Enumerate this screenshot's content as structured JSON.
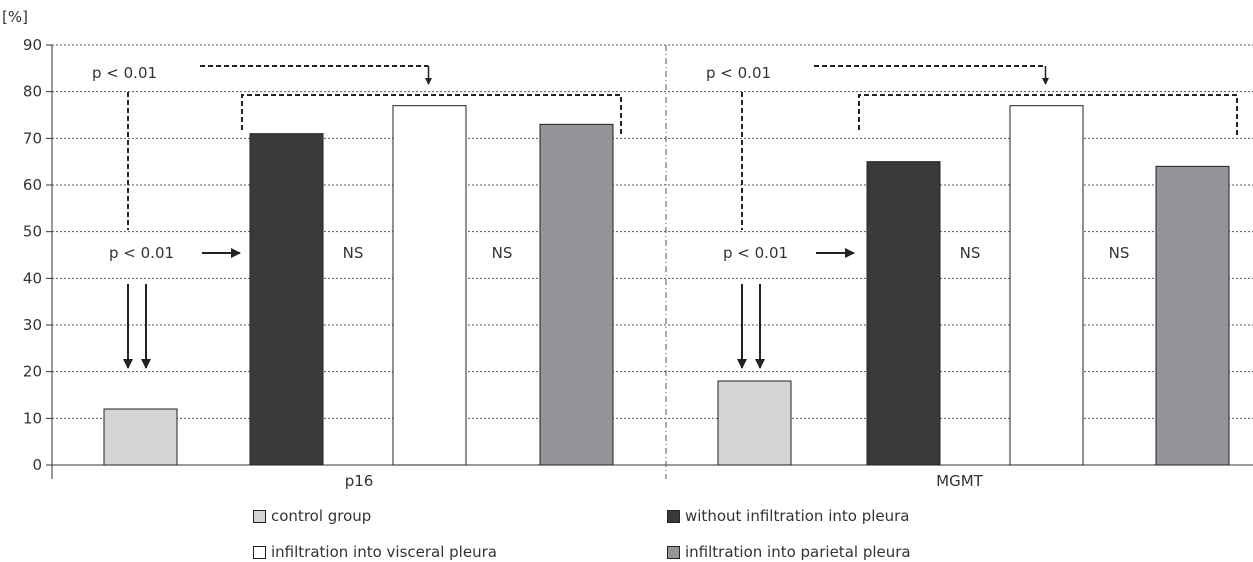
{
  "chart_data": {
    "type": "bar",
    "ylabel": "[%]",
    "ylim": [
      0,
      90
    ],
    "yticks": [
      0,
      10,
      20,
      30,
      40,
      50,
      60,
      70,
      80,
      90
    ],
    "grid": true,
    "legend_position": "bottom",
    "categories": [
      "p16",
      "MGMT"
    ],
    "series": [
      {
        "name": "control group",
        "values": [
          12,
          18
        ],
        "color": "#d3d4d6"
      },
      {
        "name": "without infiltration into pleura",
        "values": [
          71,
          65
        ],
        "color": "#3a3a3a"
      },
      {
        "name": "infiltration into visceral pleura",
        "values": [
          77,
          77
        ],
        "color": "#ffffff"
      },
      {
        "name": "infiltration into parietal pleura",
        "values": [
          73,
          64
        ],
        "color": "#939598"
      }
    ],
    "annotations": {
      "p_top": "p < 0.01",
      "p_mid": "p < 0.01",
      "ns_1": "NS",
      "ns_2": "NS"
    }
  }
}
